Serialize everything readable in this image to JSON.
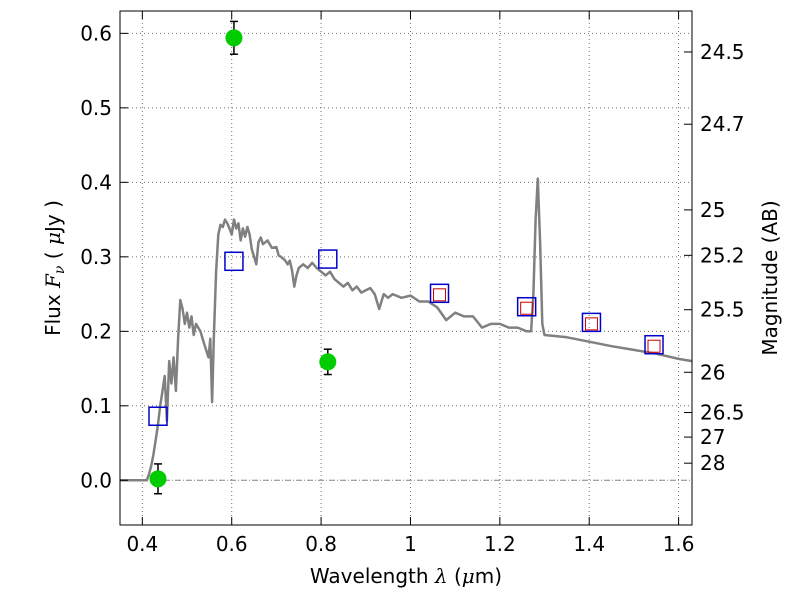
{
  "chart_data": {
    "type": "scatter",
    "xlabel": "Wavelength  λ (μm)",
    "ylabel": "Flux  Fν  ( μJy )",
    "y2label": "Magnitude (AB)",
    "xlim": [
      0.35,
      1.63
    ],
    "ylim": [
      -0.06,
      0.63
    ],
    "grid": true,
    "x_ticks": [
      0.4,
      0.6,
      0.8,
      1.0,
      1.2,
      1.4,
      1.6
    ],
    "x_tick_labels": [
      "0.4",
      "0.6",
      "0.8",
      "1",
      "1.2",
      "1.4",
      "1.6"
    ],
    "y_ticks": [
      0.0,
      0.1,
      0.2,
      0.3,
      0.4,
      0.5,
      0.6
    ],
    "y_tick_labels": [
      "0.0",
      "0.1",
      "0.2",
      "0.3",
      "0.4",
      "0.5",
      "0.6"
    ],
    "mag_ticks": [
      {
        "label": "24.5",
        "flux": 0.575
      },
      {
        "label": "24.7",
        "flux": 0.478
      },
      {
        "label": "25",
        "flux": 0.363
      },
      {
        "label": "25.2",
        "flux": 0.302
      },
      {
        "label": "25.5",
        "flux": 0.229
      },
      {
        "label": "26",
        "flux": 0.145
      },
      {
        "label": "26.5",
        "flux": 0.091
      },
      {
        "label": "27",
        "flux": 0.058
      },
      {
        "label": "28",
        "flux": 0.023
      }
    ],
    "colors": {
      "sed": "#808080",
      "observed": "#00cc00",
      "model_box": "#0000cc",
      "model_inner": "#cc0000",
      "zero_line": "#808080",
      "grid": "#707070"
    },
    "series": [
      {
        "type": "line",
        "points": [
          [
            0.35,
            0.0
          ],
          [
            0.41,
            0.0
          ],
          [
            0.415,
            0.008
          ],
          [
            0.42,
            0.02
          ],
          [
            0.425,
            0.035
          ],
          [
            0.43,
            0.055
          ],
          [
            0.435,
            0.075
          ],
          [
            0.44,
            0.1
          ],
          [
            0.445,
            0.12
          ],
          [
            0.45,
            0.14
          ],
          [
            0.455,
            0.08
          ],
          [
            0.46,
            0.16
          ],
          [
            0.465,
            0.13
          ],
          [
            0.47,
            0.165
          ],
          [
            0.475,
            0.12
          ],
          [
            0.48,
            0.19
          ],
          [
            0.485,
            0.242
          ],
          [
            0.49,
            0.23
          ],
          [
            0.495,
            0.21
          ],
          [
            0.5,
            0.225
          ],
          [
            0.505,
            0.205
          ],
          [
            0.51,
            0.22
          ],
          [
            0.515,
            0.195
          ],
          [
            0.52,
            0.21
          ],
          [
            0.53,
            0.2
          ],
          [
            0.54,
            0.18
          ],
          [
            0.548,
            0.165
          ],
          [
            0.552,
            0.19
          ],
          [
            0.556,
            0.105
          ],
          [
            0.56,
            0.19
          ],
          [
            0.565,
            0.28
          ],
          [
            0.57,
            0.33
          ],
          [
            0.575,
            0.343
          ],
          [
            0.58,
            0.34
          ],
          [
            0.585,
            0.35
          ],
          [
            0.59,
            0.345
          ],
          [
            0.595,
            0.338
          ],
          [
            0.6,
            0.33
          ],
          [
            0.605,
            0.35
          ],
          [
            0.61,
            0.338
          ],
          [
            0.615,
            0.345
          ],
          [
            0.62,
            0.322
          ],
          [
            0.625,
            0.338
          ],
          [
            0.63,
            0.327
          ],
          [
            0.635,
            0.34
          ],
          [
            0.64,
            0.33
          ],
          [
            0.645,
            0.31
          ],
          [
            0.65,
            0.3
          ],
          [
            0.655,
            0.29
          ],
          [
            0.66,
            0.32
          ],
          [
            0.665,
            0.326
          ],
          [
            0.67,
            0.317
          ],
          [
            0.68,
            0.322
          ],
          [
            0.69,
            0.312
          ],
          [
            0.7,
            0.313
          ],
          [
            0.705,
            0.302
          ],
          [
            0.71,
            0.3
          ],
          [
            0.72,
            0.295
          ],
          [
            0.725,
            0.29
          ],
          [
            0.73,
            0.295
          ],
          [
            0.735,
            0.282
          ],
          [
            0.74,
            0.26
          ],
          [
            0.745,
            0.275
          ],
          [
            0.75,
            0.285
          ],
          [
            0.76,
            0.29
          ],
          [
            0.77,
            0.285
          ],
          [
            0.78,
            0.292
          ],
          [
            0.79,
            0.285
          ],
          [
            0.8,
            0.28
          ],
          [
            0.81,
            0.275
          ],
          [
            0.82,
            0.28
          ],
          [
            0.83,
            0.27
          ],
          [
            0.84,
            0.265
          ],
          [
            0.85,
            0.26
          ],
          [
            0.86,
            0.265
          ],
          [
            0.87,
            0.255
          ],
          [
            0.88,
            0.26
          ],
          [
            0.89,
            0.252
          ],
          [
            0.9,
            0.255
          ],
          [
            0.91,
            0.258
          ],
          [
            0.92,
            0.25
          ],
          [
            0.93,
            0.23
          ],
          [
            0.94,
            0.25
          ],
          [
            0.95,
            0.245
          ],
          [
            0.96,
            0.25
          ],
          [
            0.98,
            0.245
          ],
          [
            1.0,
            0.248
          ],
          [
            1.02,
            0.24
          ],
          [
            1.04,
            0.24
          ],
          [
            1.06,
            0.232
          ],
          [
            1.08,
            0.215
          ],
          [
            1.1,
            0.225
          ],
          [
            1.12,
            0.22
          ],
          [
            1.14,
            0.22
          ],
          [
            1.16,
            0.205
          ],
          [
            1.18,
            0.21
          ],
          [
            1.2,
            0.21
          ],
          [
            1.22,
            0.205
          ],
          [
            1.24,
            0.205
          ],
          [
            1.26,
            0.2
          ],
          [
            1.27,
            0.2
          ],
          [
            1.275,
            0.25
          ],
          [
            1.28,
            0.35
          ],
          [
            1.285,
            0.405
          ],
          [
            1.29,
            0.32
          ],
          [
            1.295,
            0.21
          ],
          [
            1.3,
            0.195
          ],
          [
            1.35,
            0.192
          ],
          [
            1.4,
            0.186
          ],
          [
            1.45,
            0.18
          ],
          [
            1.5,
            0.175
          ],
          [
            1.55,
            0.17
          ],
          [
            1.6,
            0.163
          ],
          [
            1.63,
            0.16
          ]
        ]
      },
      {
        "type": "scatter",
        "points": [
          {
            "x": 0.435,
            "y": 0.002,
            "err": 0.02
          },
          {
            "x": 0.605,
            "y": 0.594,
            "err": 0.022
          },
          {
            "x": 0.815,
            "y": 0.159,
            "err": 0.017
          }
        ]
      },
      {
        "type": "scatter",
        "points": [
          {
            "x": 0.435,
            "y": 0.086
          },
          {
            "x": 0.605,
            "y": 0.294
          },
          {
            "x": 0.815,
            "y": 0.297
          },
          {
            "x": 1.065,
            "y": 0.251
          },
          {
            "x": 1.26,
            "y": 0.233
          },
          {
            "x": 1.405,
            "y": 0.212
          },
          {
            "x": 1.545,
            "y": 0.182
          }
        ]
      },
      {
        "type": "scatter",
        "points": [
          {
            "x": 1.065,
            "y": 0.249
          },
          {
            "x": 1.26,
            "y": 0.231
          },
          {
            "x": 1.405,
            "y": 0.21
          },
          {
            "x": 1.545,
            "y": 0.18
          }
        ]
      }
    ]
  }
}
